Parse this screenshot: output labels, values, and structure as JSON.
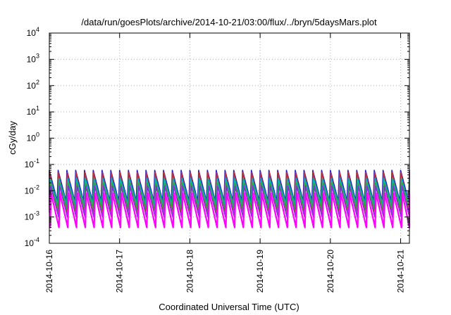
{
  "chart_data": {
    "type": "line",
    "title": "/data/run/goesPlots/archive/2014-10-21/03:00/flux/../bryn/5daysMars.plot",
    "xlabel": "Coordinated Universal Time (UTC)",
    "ylabel": "cGy/day",
    "y_scale": "log",
    "ylim": [
      0.0001,
      10000
    ],
    "y_ticks": [
      {
        "base": "10",
        "exp": "-4",
        "value": 0.0001
      },
      {
        "base": "10",
        "exp": "-3",
        "value": 0.001
      },
      {
        "base": "10",
        "exp": "-2",
        "value": 0.01
      },
      {
        "base": "10",
        "exp": "-1",
        "value": 0.1
      },
      {
        "base": "10",
        "exp": "0",
        "value": 1
      },
      {
        "base": "10",
        "exp": "1",
        "value": 10
      },
      {
        "base": "10",
        "exp": "2",
        "value": 100
      },
      {
        "base": "10",
        "exp": "3",
        "value": 1000
      },
      {
        "base": "10",
        "exp": "4",
        "value": 10000
      }
    ],
    "xlim": [
      "2014-10-16",
      "2014-10-21 03:00"
    ],
    "x_ticks": [
      "2014-10-16",
      "2014-10-17",
      "2014-10-18",
      "2014-10-19",
      "2014-10-20",
      "2014-10-21"
    ],
    "grid": true,
    "cycle_period_hours": 3,
    "series": [
      {
        "color": "#1f1fd0",
        "peak": 0.06,
        "trough": 0.004
      },
      {
        "color": "#c0303a",
        "peak": 0.05,
        "trough": 0.0015
      },
      {
        "color": "#00b0b0",
        "peak": 0.03,
        "trough": 0.003
      },
      {
        "color": "#33aa33",
        "peak": 0.02,
        "trough": 0.002
      },
      {
        "color": "#8a2be2",
        "peak": 0.015,
        "trough": 0.001
      },
      {
        "color": "#ff00ff",
        "peak": 0.008,
        "trough": 0.0004
      }
    ]
  }
}
